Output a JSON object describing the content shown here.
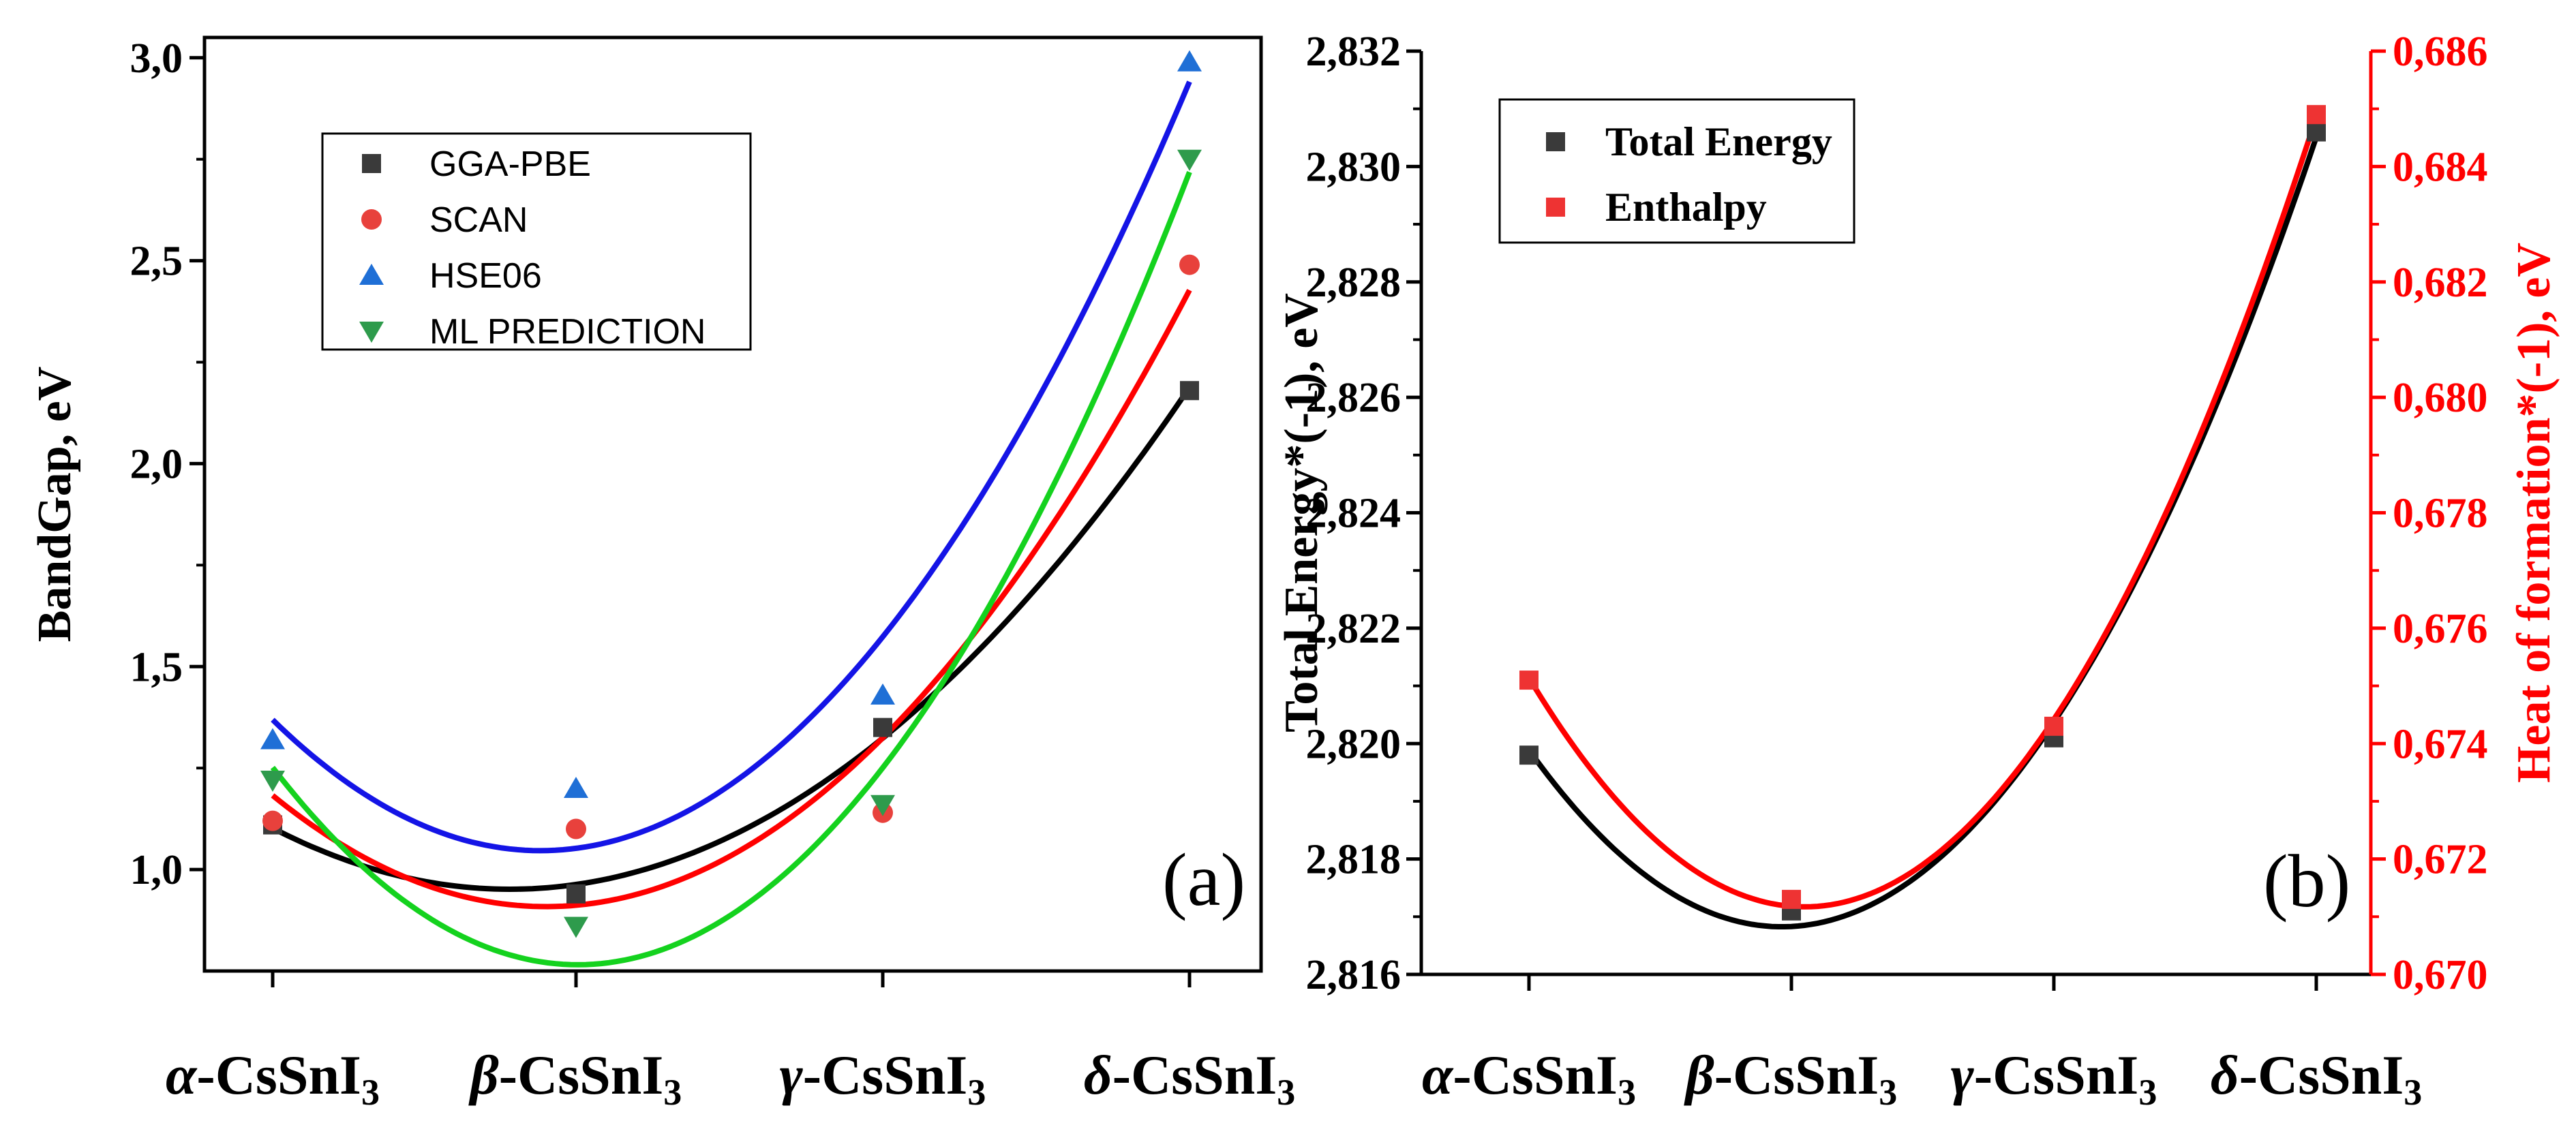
{
  "chart_data": [
    {
      "type": "scatter",
      "panel_label": "(a)",
      "ylabel": "BandGap, eV",
      "ylim": [
        0.75,
        3.05
      ],
      "yticks": [
        "1,0",
        "1,5",
        "2,0",
        "2,5",
        "3,0"
      ],
      "yticks_values": [
        1.0,
        1.5,
        2.0,
        2.5,
        3.0
      ],
      "categories": [
        "α-CsSnI3",
        "β-CsSnI3",
        "γ-CsSnI3",
        "δ-CsSnI3"
      ],
      "legend_position": "top-left",
      "fit": "quadratic",
      "series": [
        {
          "name": "GGA-PBE",
          "marker": "square",
          "color": "#3a3a3a",
          "fit_color": "#000000",
          "values": [
            1.11,
            0.94,
            1.35,
            2.18
          ]
        },
        {
          "name": "SCAN",
          "marker": "circle",
          "color": "#e8413c",
          "fit_color": "#ff0000",
          "values": [
            1.12,
            1.1,
            1.14,
            2.49
          ]
        },
        {
          "name": "HSE06",
          "marker": "triangle-up",
          "color": "#1f6fd6",
          "fit_color": "#1414e6",
          "values": [
            1.32,
            1.2,
            1.43,
            2.99
          ]
        },
        {
          "name": "ML PREDICTION",
          "marker": "triangle-down",
          "color": "#2e9b4c",
          "fit_color": "#14d21e",
          "values": [
            1.22,
            0.86,
            1.16,
            2.75
          ]
        }
      ]
    },
    {
      "type": "scatter",
      "panel_label": "(b)",
      "ylabel_left": "Total Energy*(-1), eV",
      "ylabel_right": "Heat of formation*(-1), eV",
      "ylim_left": [
        2.816,
        2.832
      ],
      "ylim_right": [
        0.67,
        0.686
      ],
      "yticks_left": [
        "2,816",
        "2,818",
        "2,820",
        "2,822",
        "2,824",
        "2,826",
        "2,828",
        "2,830",
        "2,832"
      ],
      "yticks_left_values": [
        2.816,
        2.818,
        2.82,
        2.822,
        2.824,
        2.826,
        2.828,
        2.83,
        2.832
      ],
      "yticks_right": [
        "0,670",
        "0,672",
        "0,674",
        "0,676",
        "0,678",
        "0,680",
        "0,682",
        "0,684",
        "0,686"
      ],
      "yticks_right_values": [
        0.67,
        0.672,
        0.674,
        0.676,
        0.678,
        0.68,
        0.682,
        0.684,
        0.686
      ],
      "categories": [
        "α-CsSnI3",
        "β-CsSnI3",
        "γ-CsSnI3",
        "δ-CsSnI3"
      ],
      "legend_position": "top-left",
      "fit": "quadratic",
      "right_axis_color": "#ff0000",
      "series": [
        {
          "name": "Total Energy",
          "axis": "left",
          "marker": "square",
          "color": "#3a3a3a",
          "fit_color": "#000000",
          "values": [
            2.8198,
            2.8171,
            2.8201,
            2.8306
          ]
        },
        {
          "name": "Enthalpy",
          "axis": "right",
          "marker": "square",
          "color": "#ee3333",
          "fit_color": "#ff0000",
          "values": [
            0.6751,
            0.6713,
            0.6743,
            0.6849
          ]
        }
      ]
    }
  ]
}
